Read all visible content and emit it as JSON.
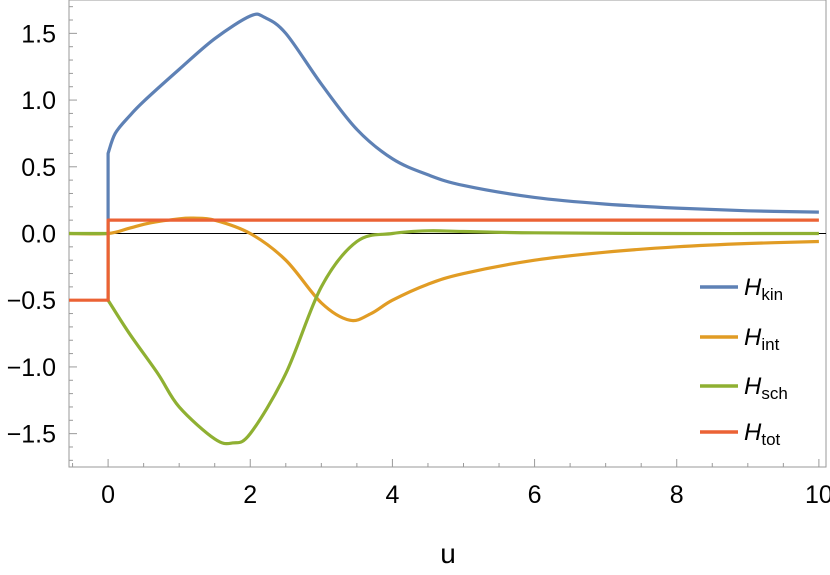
{
  "chart_data": {
    "type": "line",
    "title": "",
    "xlabel": "u",
    "ylabel": "",
    "xlim": [
      -0.55,
      10.1
    ],
    "ylim": [
      -1.75,
      1.75
    ],
    "grid": false,
    "zero_line": true,
    "legend_position": "right",
    "x_ticks": [
      "0",
      "2",
      "4",
      "6",
      "8",
      "10"
    ],
    "y_ticks": [
      "−1.5",
      "−1.0",
      "−0.5",
      "0.0",
      "0.5",
      "1.0",
      "1.5"
    ],
    "series": [
      {
        "name": "H",
        "subscript": "kin",
        "color": "#5E81B5",
        "x": [
          0,
          0,
          0.1,
          0.3,
          0.5,
          1.0,
          1.5,
          2.0,
          2.2,
          2.5,
          3.0,
          3.5,
          4.0,
          4.5,
          5.0,
          6.0,
          7.0,
          8.0,
          9.0,
          10.0
        ],
        "y": [
          0,
          0.6,
          0.75,
          0.88,
          0.99,
          1.23,
          1.46,
          1.63,
          1.62,
          1.5,
          1.12,
          0.78,
          0.56,
          0.44,
          0.36,
          0.27,
          0.22,
          0.19,
          0.17,
          0.16
        ]
      },
      {
        "name": "H",
        "subscript": "int",
        "color": "#E19C24",
        "x": [
          -0.55,
          0,
          0.3,
          0.6,
          1.0,
          1.2,
          1.5,
          2.0,
          2.5,
          3.0,
          3.4,
          3.7,
          4.0,
          4.5,
          5.0,
          6.0,
          7.0,
          8.0,
          9.0,
          10.0
        ],
        "y": [
          0,
          0,
          0.04,
          0.08,
          0.11,
          0.115,
          0.1,
          0.0,
          -0.2,
          -0.52,
          -0.65,
          -0.6,
          -0.5,
          -0.38,
          -0.3,
          -0.2,
          -0.14,
          -0.1,
          -0.075,
          -0.06
        ]
      },
      {
        "name": "H",
        "subscript": "sch",
        "color": "#8FB032",
        "x": [
          -0.55,
          0,
          0,
          0.3,
          0.7,
          1.0,
          1.5,
          1.75,
          2.0,
          2.5,
          3.0,
          3.5,
          4.0,
          4.5,
          5.0,
          6.0,
          8.0,
          10.0
        ],
        "y": [
          0,
          0,
          -0.5,
          -0.75,
          -1.05,
          -1.3,
          -1.54,
          -1.57,
          -1.5,
          -1.05,
          -0.4,
          -0.06,
          0.0,
          0.02,
          0.015,
          0.005,
          0.0,
          0.0
        ]
      },
      {
        "name": "H",
        "subscript": "tot",
        "color": "#EB6235",
        "x": [
          -0.55,
          0,
          0,
          10.0
        ],
        "y": [
          -0.5,
          -0.5,
          0.1,
          0.1
        ]
      }
    ]
  }
}
